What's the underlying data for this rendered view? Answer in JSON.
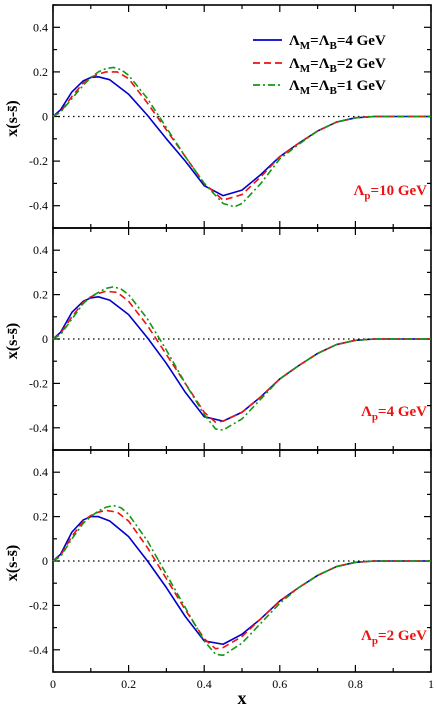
{
  "chart_data": [
    {
      "type": "line",
      "panel_label": "Λp=10 GeV",
      "ylabel": "x(s-s̄)",
      "xlim": [
        0,
        1
      ],
      "ylim": [
        -0.5,
        0.5
      ],
      "xticks": [
        0,
        0.2,
        0.4,
        0.6,
        0.8,
        1
      ],
      "yticks": [
        -0.4,
        -0.2,
        0,
        0.2,
        0.4
      ],
      "ytick_labels": [
        "-0.4",
        "-0.2",
        "0",
        "0.2",
        "0.4"
      ],
      "reference_line": {
        "y": 0,
        "style": "dotted"
      },
      "legend": {
        "placement": "top-right",
        "entries": [
          {
            "label": "ΛM=ΛB=4 GeV",
            "series": 0
          },
          {
            "label": "ΛM=ΛB=2 GeV",
            "series": 1
          },
          {
            "label": "ΛM=ΛB=1 GeV",
            "series": 2
          }
        ]
      },
      "series": [
        {
          "name": "ΛM=ΛB=4 GeV",
          "color": "#0000cc",
          "dash": "solid",
          "x": [
            0,
            0.02,
            0.05,
            0.08,
            0.1,
            0.12,
            0.15,
            0.2,
            0.25,
            0.3,
            0.35,
            0.4,
            0.45,
            0.5,
            0.55,
            0.6,
            0.65,
            0.7,
            0.75,
            0.8,
            0.85,
            0.9,
            1.0
          ],
          "y": [
            0,
            0.03,
            0.11,
            0.16,
            0.175,
            0.178,
            0.165,
            0.1,
            0.005,
            -0.1,
            -0.2,
            -0.31,
            -0.355,
            -0.33,
            -0.26,
            -0.18,
            -0.12,
            -0.065,
            -0.025,
            -0.006,
            0,
            0,
            0
          ]
        },
        {
          "name": "ΛM=ΛB=2 GeV",
          "color": "#ee1111",
          "dash": "dash",
          "x": [
            0,
            0.02,
            0.05,
            0.08,
            0.1,
            0.12,
            0.14,
            0.17,
            0.2,
            0.25,
            0.3,
            0.35,
            0.4,
            0.45,
            0.5,
            0.55,
            0.6,
            0.65,
            0.7,
            0.75,
            0.8,
            0.85,
            0.9,
            1.0
          ],
          "y": [
            0,
            0.02,
            0.09,
            0.15,
            0.175,
            0.19,
            0.2,
            0.2,
            0.17,
            0.06,
            -0.06,
            -0.18,
            -0.3,
            -0.375,
            -0.35,
            -0.27,
            -0.18,
            -0.12,
            -0.065,
            -0.025,
            -0.006,
            0,
            0,
            0
          ]
        },
        {
          "name": "ΛM=ΛB=1 GeV",
          "color": "#119911",
          "dash": "dashdot",
          "x": [
            0,
            0.02,
            0.05,
            0.08,
            0.1,
            0.12,
            0.14,
            0.16,
            0.18,
            0.2,
            0.25,
            0.3,
            0.35,
            0.4,
            0.45,
            0.48,
            0.5,
            0.55,
            0.6,
            0.65,
            0.7,
            0.75,
            0.8,
            0.85,
            0.9,
            1.0
          ],
          "y": [
            0,
            0.02,
            0.08,
            0.14,
            0.175,
            0.2,
            0.215,
            0.22,
            0.21,
            0.185,
            0.08,
            -0.05,
            -0.18,
            -0.3,
            -0.39,
            -0.405,
            -0.39,
            -0.3,
            -0.19,
            -0.125,
            -0.065,
            -0.025,
            -0.006,
            0,
            0,
            0
          ]
        }
      ]
    },
    {
      "type": "line",
      "panel_label": "Λp=4 GeV",
      "ylabel": "x(s-s̄)",
      "xlim": [
        0,
        1
      ],
      "ylim": [
        -0.5,
        0.5
      ],
      "xticks": [
        0,
        0.2,
        0.4,
        0.6,
        0.8,
        1
      ],
      "yticks": [
        -0.4,
        -0.2,
        0,
        0.2,
        0.4
      ],
      "ytick_labels": [
        "-0.4",
        "-0.2",
        "0",
        "0.2",
        "0.4"
      ],
      "reference_line": {
        "y": 0,
        "style": "dotted"
      },
      "series": [
        {
          "name": "ΛM=ΛB=4 GeV",
          "color": "#0000cc",
          "dash": "solid",
          "x": [
            0,
            0.02,
            0.05,
            0.08,
            0.1,
            0.12,
            0.15,
            0.2,
            0.25,
            0.3,
            0.35,
            0.4,
            0.45,
            0.5,
            0.55,
            0.6,
            0.65,
            0.7,
            0.75,
            0.8,
            0.85,
            0.9,
            1.0
          ],
          "y": [
            0,
            0.03,
            0.12,
            0.17,
            0.185,
            0.19,
            0.175,
            0.11,
            0.005,
            -0.11,
            -0.24,
            -0.35,
            -0.37,
            -0.33,
            -0.26,
            -0.18,
            -0.12,
            -0.065,
            -0.025,
            -0.006,
            0,
            0,
            0
          ]
        },
        {
          "name": "ΛM=ΛB=2 GeV",
          "color": "#ee1111",
          "dash": "dash",
          "x": [
            0,
            0.02,
            0.05,
            0.08,
            0.1,
            0.12,
            0.14,
            0.17,
            0.2,
            0.25,
            0.3,
            0.35,
            0.4,
            0.43,
            0.45,
            0.5,
            0.55,
            0.6,
            0.65,
            0.7,
            0.75,
            0.8,
            0.85,
            0.9,
            1.0
          ],
          "y": [
            0,
            0.025,
            0.1,
            0.165,
            0.19,
            0.205,
            0.215,
            0.21,
            0.17,
            0.06,
            -0.07,
            -0.2,
            -0.33,
            -0.375,
            -0.37,
            -0.33,
            -0.26,
            -0.18,
            -0.12,
            -0.065,
            -0.025,
            -0.006,
            0,
            0,
            0
          ]
        },
        {
          "name": "ΛM=ΛB=1 GeV",
          "color": "#119911",
          "dash": "dashdot",
          "x": [
            0,
            0.02,
            0.05,
            0.08,
            0.1,
            0.12,
            0.14,
            0.16,
            0.18,
            0.2,
            0.25,
            0.3,
            0.35,
            0.4,
            0.43,
            0.45,
            0.5,
            0.55,
            0.6,
            0.65,
            0.7,
            0.75,
            0.8,
            0.85,
            0.9,
            1.0
          ],
          "y": [
            0,
            0.02,
            0.09,
            0.16,
            0.19,
            0.21,
            0.228,
            0.235,
            0.225,
            0.2,
            0.09,
            -0.05,
            -0.2,
            -0.34,
            -0.405,
            -0.41,
            -0.36,
            -0.27,
            -0.18,
            -0.12,
            -0.065,
            -0.025,
            -0.006,
            0,
            0,
            0
          ]
        }
      ]
    },
    {
      "type": "line",
      "panel_label": "Λp=2 GeV",
      "xlabel": "x",
      "ylabel": "x(s-s̄)",
      "xlim": [
        0,
        1
      ],
      "ylim": [
        -0.5,
        0.5
      ],
      "xticks": [
        0,
        0.2,
        0.4,
        0.6,
        0.8,
        1
      ],
      "xtick_labels": [
        "0",
        "0.2",
        "0.4",
        "0.6",
        "0.8",
        "1"
      ],
      "yticks": [
        -0.4,
        -0.2,
        0,
        0.2,
        0.4
      ],
      "ytick_labels": [
        "-0.4",
        "-0.2",
        "0",
        "0.2",
        "0.4"
      ],
      "reference_line": {
        "y": 0,
        "style": "dotted"
      },
      "series": [
        {
          "name": "ΛM=ΛB=4 GeV",
          "color": "#0000cc",
          "dash": "solid",
          "x": [
            0,
            0.02,
            0.05,
            0.08,
            0.1,
            0.12,
            0.15,
            0.2,
            0.25,
            0.3,
            0.35,
            0.4,
            0.45,
            0.5,
            0.55,
            0.6,
            0.65,
            0.7,
            0.75,
            0.8,
            0.85,
            0.9,
            1.0
          ],
          "y": [
            0,
            0.03,
            0.13,
            0.185,
            0.2,
            0.2,
            0.18,
            0.11,
            0,
            -0.12,
            -0.25,
            -0.36,
            -0.375,
            -0.33,
            -0.26,
            -0.18,
            -0.12,
            -0.065,
            -0.025,
            -0.006,
            0,
            0,
            0
          ]
        },
        {
          "name": "ΛM=ΛB=2 GeV",
          "color": "#ee1111",
          "dash": "dash",
          "x": [
            0,
            0.02,
            0.05,
            0.08,
            0.1,
            0.12,
            0.14,
            0.17,
            0.2,
            0.25,
            0.3,
            0.35,
            0.4,
            0.43,
            0.45,
            0.5,
            0.55,
            0.6,
            0.65,
            0.7,
            0.75,
            0.8,
            0.85,
            0.9,
            1.0
          ],
          "y": [
            0,
            0.025,
            0.11,
            0.18,
            0.205,
            0.22,
            0.228,
            0.22,
            0.18,
            0.06,
            -0.08,
            -0.22,
            -0.35,
            -0.395,
            -0.39,
            -0.34,
            -0.26,
            -0.18,
            -0.12,
            -0.065,
            -0.025,
            -0.006,
            0,
            0,
            0
          ]
        },
        {
          "name": "ΛM=ΛB=1 GeV",
          "color": "#119911",
          "dash": "dashdot",
          "x": [
            0,
            0.02,
            0.05,
            0.08,
            0.1,
            0.12,
            0.14,
            0.16,
            0.18,
            0.2,
            0.25,
            0.3,
            0.35,
            0.4,
            0.43,
            0.45,
            0.5,
            0.55,
            0.6,
            0.65,
            0.7,
            0.75,
            0.8,
            0.85,
            0.9,
            1.0
          ],
          "y": [
            0,
            0.02,
            0.1,
            0.17,
            0.2,
            0.225,
            0.242,
            0.25,
            0.24,
            0.21,
            0.09,
            -0.06,
            -0.21,
            -0.36,
            -0.42,
            -0.425,
            -0.37,
            -0.28,
            -0.19,
            -0.12,
            -0.065,
            -0.025,
            -0.006,
            0,
            0,
            0
          ]
        }
      ]
    }
  ]
}
